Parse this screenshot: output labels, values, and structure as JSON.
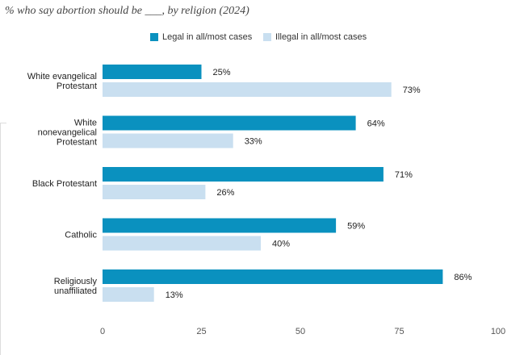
{
  "chart_data": {
    "type": "bar",
    "orientation": "horizontal",
    "title": "% who say abortion should be ___, by religion (2024)",
    "categories": [
      [
        "White evangelical",
        "Protestant"
      ],
      [
        "White",
        "nonevangelical",
        "Protestant"
      ],
      [
        "Black Protestant"
      ],
      [
        "Catholic"
      ],
      [
        "Religiously",
        "unaffiliated"
      ]
    ],
    "series": [
      {
        "name": "Legal in all/most cases",
        "color": "#0a91bf",
        "values": [
          25,
          64,
          71,
          59,
          86
        ]
      },
      {
        "name": "Illegal in all/most cases",
        "color": "#c9dff0",
        "values": [
          73,
          33,
          26,
          40,
          13
        ]
      }
    ],
    "value_suffix": "%",
    "xlim": [
      0,
      100
    ],
    "xticks": [
      0,
      25,
      50,
      75,
      100
    ],
    "legend_position": "top",
    "grid": false
  }
}
